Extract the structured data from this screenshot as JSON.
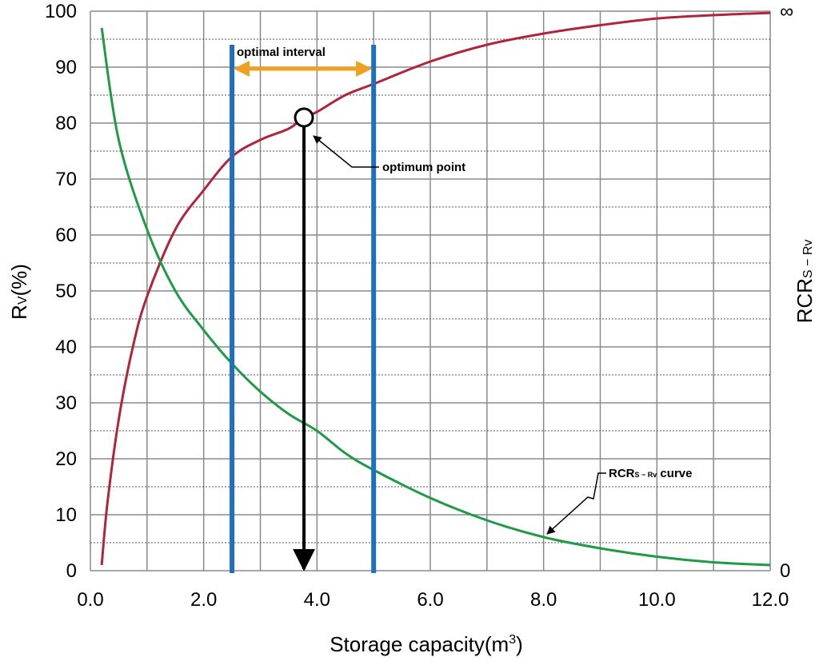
{
  "chart_data": {
    "type": "line",
    "xlabel": "Storage capacity(m",
    "xlabel_sup": "3",
    "xlabel_tail": ")",
    "ylabel_main": "R",
    "ylabel_sub": "V",
    "ylabel_tail": "(%)",
    "y2label_main": "RCR",
    "y2label_sub": "S − Rv",
    "x_ticks": [
      "0.0",
      "2.0",
      "4.0",
      "6.0",
      "8.0",
      "10.0",
      "12.0"
    ],
    "y_ticks": [
      "0",
      "10",
      "20",
      "30",
      "40",
      "50",
      "60",
      "70",
      "80",
      "90",
      "100"
    ],
    "y2_top_label": "∞",
    "y2_bottom_label": "0",
    "xlim": [
      0,
      12
    ],
    "ylim": [
      0,
      100
    ],
    "grid": true,
    "series": [
      {
        "key": "rv",
        "color": "#b0253a",
        "x": [
          0.2,
          0.3,
          0.5,
          0.75,
          1.0,
          1.5,
          2.0,
          2.5,
          3.0,
          3.5,
          3.77,
          4.0,
          4.5,
          5.0,
          6.0,
          7.0,
          8.0,
          9.0,
          10.0,
          11.0,
          12.0
        ],
        "y": [
          1,
          12,
          27,
          40,
          49,
          61,
          68,
          74,
          77,
          79,
          81,
          82,
          85,
          87,
          91,
          94,
          96,
          97.5,
          98.7,
          99.3,
          99.7
        ]
      },
      {
        "key": "rcr",
        "color": "#1f9a45",
        "x": [
          0.2,
          0.5,
          1.0,
          1.5,
          2.0,
          2.5,
          3.0,
          3.5,
          4.0,
          4.5,
          5.0,
          6.0,
          7.0,
          8.0,
          9.0,
          10.0,
          11.0,
          12.0
        ],
        "y": [
          97,
          77,
          61,
          50,
          43,
          37,
          32,
          28,
          25,
          21,
          18,
          13,
          9,
          6,
          4,
          2.5,
          1.5,
          1
        ]
      }
    ],
    "interval_lines_x": [
      2.5,
      5.0
    ],
    "interval_color": "#1f6fc0",
    "interval_label": "optimal interval",
    "interval_arrow_color": "#f0a020",
    "optimum_point": {
      "x": 3.77,
      "y": 81
    },
    "optimum_label": "optimum point",
    "curve_label_main": "RCR",
    "curve_label_sub": "S − Rv",
    "curve_label_tail": " curve"
  }
}
